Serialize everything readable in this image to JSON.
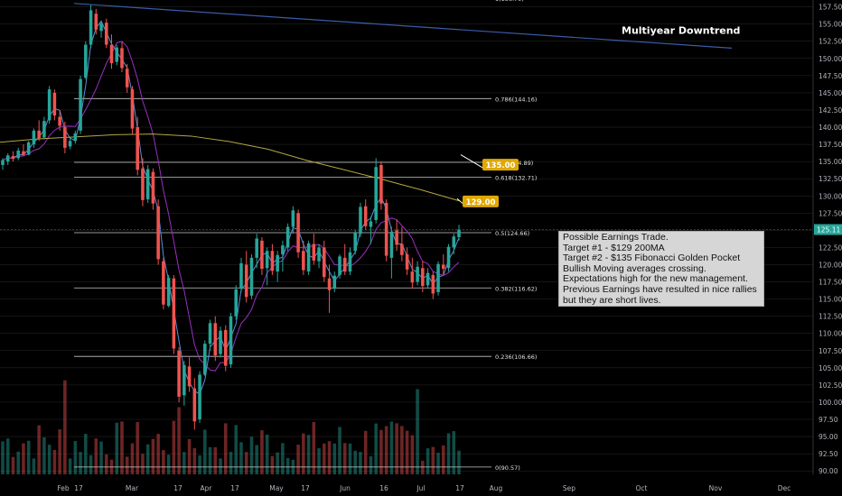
{
  "chart_data": {
    "type": "candlestick",
    "ylim": [
      89.5,
      158.5
    ],
    "y_ticks": [
      "157.50",
      "155.00",
      "152.50",
      "150.00",
      "147.50",
      "145.00",
      "142.50",
      "140.00",
      "137.50",
      "135.00",
      "132.50",
      "130.00",
      "127.50",
      "125.00",
      "122.50",
      "120.00",
      "117.50",
      "115.00",
      "112.50",
      "110.00",
      "107.50",
      "105.00",
      "102.50",
      "100.00",
      "97.50",
      "95.00",
      "92.50",
      "90.00"
    ],
    "x_ticks": [
      "Feb",
      "17",
      "Mar",
      "17",
      "Apr",
      "17",
      "May",
      "17",
      "Jun",
      "16",
      "Jul",
      "17",
      "Aug",
      "Sep",
      "Oct",
      "Nov",
      "Dec"
    ],
    "last_price": "125.11",
    "fib_levels": [
      {
        "label": "1(158.79)",
        "value": 158.79
      },
      {
        "label": "0.786(144.16)",
        "value": 144.16
      },
      {
        "label": "0.65(134.89)",
        "value": 134.89
      },
      {
        "label": "0.618(132.71)",
        "value": 132.71
      },
      {
        "label": "0.5(124.66)",
        "value": 124.66
      },
      {
        "label": "0.382(116.62)",
        "value": 116.62
      },
      {
        "label": "0.236(106.66)",
        "value": 106.66
      },
      {
        "label": "0(90.57)",
        "value": 90.57
      }
    ],
    "targets": [
      {
        "label": "135.00",
        "value": 135.0
      },
      {
        "label": "129.00",
        "value": 129.0
      }
    ],
    "trendline_label": "Multiyear Downtrend",
    "ohlc": [
      [
        134.5,
        135.5,
        133.8,
        135.2
      ],
      [
        135.0,
        136.2,
        134.5,
        135.9
      ],
      [
        135.8,
        136.5,
        135.0,
        135.4
      ],
      [
        135.5,
        137.0,
        135.2,
        136.6
      ],
      [
        136.5,
        137.5,
        135.8,
        136.0
      ],
      [
        136.0,
        138.0,
        135.9,
        137.8
      ],
      [
        137.5,
        139.8,
        137.0,
        139.5
      ],
      [
        139.5,
        141.0,
        138.0,
        138.4
      ],
      [
        138.5,
        141.5,
        138.2,
        140.9
      ],
      [
        141.0,
        146.0,
        140.5,
        145.5
      ],
      [
        145.0,
        145.5,
        141.0,
        141.7
      ],
      [
        141.5,
        142.5,
        139.5,
        140.2
      ],
      [
        140.0,
        140.8,
        136.2,
        137.0
      ],
      [
        137.2,
        138.5,
        136.8,
        138.0
      ],
      [
        138.0,
        139.5,
        137.6,
        139.1
      ],
      [
        139.5,
        147.5,
        139.0,
        147.0
      ],
      [
        147.2,
        152.5,
        147.0,
        152.0
      ],
      [
        152.0,
        157.8,
        151.5,
        157.0
      ],
      [
        156.5,
        157.2,
        153.5,
        154.2
      ],
      [
        154.0,
        155.5,
        153.0,
        155.1
      ],
      [
        155.2,
        155.8,
        151.5,
        152.0
      ],
      [
        152.0,
        153.5,
        148.5,
        149.3
      ],
      [
        149.5,
        152.0,
        149.0,
        151.6
      ],
      [
        151.5,
        152.5,
        148.0,
        148.6
      ],
      [
        148.5,
        149.2,
        145.0,
        145.8
      ],
      [
        145.5,
        146.0,
        139.0,
        139.8
      ],
      [
        140.0,
        141.5,
        133.0,
        133.8
      ],
      [
        134.0,
        135.5,
        128.5,
        129.4
      ],
      [
        129.5,
        134.5,
        129.0,
        133.9
      ],
      [
        133.5,
        134.0,
        128.0,
        128.9
      ],
      [
        128.5,
        129.5,
        120.0,
        120.8
      ],
      [
        120.5,
        121.0,
        113.5,
        114.2
      ],
      [
        114.0,
        118.5,
        113.8,
        118.1
      ],
      [
        118.0,
        118.5,
        107.0,
        107.8
      ],
      [
        107.5,
        108.0,
        100.0,
        100.8
      ],
      [
        101.0,
        106.0,
        99.5,
        105.4
      ],
      [
        105.2,
        106.5,
        101.5,
        102.3
      ],
      [
        102.0,
        103.5,
        96.0,
        97.2
      ],
      [
        97.5,
        104.5,
        97.0,
        104.0
      ],
      [
        104.0,
        109.0,
        103.8,
        108.5
      ],
      [
        108.5,
        112.0,
        107.5,
        111.5
      ],
      [
        111.5,
        112.5,
        106.0,
        106.8
      ],
      [
        107.0,
        111.0,
        106.5,
        110.4
      ],
      [
        110.5,
        111.2,
        104.5,
        105.3
      ],
      [
        105.5,
        113.0,
        105.0,
        112.5
      ],
      [
        112.5,
        117.0,
        112.0,
        116.4
      ],
      [
        116.5,
        121.0,
        116.0,
        120.2
      ],
      [
        120.0,
        122.0,
        114.5,
        115.3
      ],
      [
        115.5,
        121.5,
        115.0,
        121.0
      ],
      [
        121.0,
        124.5,
        119.5,
        123.8
      ],
      [
        123.5,
        124.0,
        118.5,
        119.4
      ],
      [
        119.5,
        122.5,
        117.0,
        122.0
      ],
      [
        122.0,
        123.0,
        118.5,
        119.1
      ],
      [
        119.0,
        122.0,
        117.5,
        121.4
      ],
      [
        121.5,
        123.5,
        119.0,
        122.8
      ],
      [
        122.5,
        126.0,
        122.0,
        125.5
      ],
      [
        125.5,
        128.5,
        124.5,
        127.9
      ],
      [
        127.5,
        128.0,
        121.0,
        121.8
      ],
      [
        122.0,
        123.5,
        118.5,
        119.2
      ],
      [
        119.0,
        123.5,
        118.5,
        123.1
      ],
      [
        123.0,
        124.5,
        120.0,
        120.6
      ],
      [
        120.5,
        123.0,
        119.5,
        122.5
      ],
      [
        122.5,
        123.5,
        117.5,
        118.2
      ],
      [
        118.0,
        120.0,
        113.0,
        116.3
      ],
      [
        116.5,
        119.0,
        116.0,
        118.4
      ],
      [
        118.5,
        121.5,
        118.0,
        121.2
      ],
      [
        121.0,
        123.0,
        118.5,
        119.0
      ],
      [
        119.0,
        122.5,
        118.5,
        121.8
      ],
      [
        122.0,
        125.0,
        121.5,
        124.7
      ],
      [
        124.5,
        129.0,
        124.0,
        128.4
      ],
      [
        128.5,
        129.5,
        125.0,
        125.6
      ],
      [
        125.5,
        127.0,
        123.0,
        126.3
      ],
      [
        126.5,
        135.5,
        126.0,
        134.2
      ],
      [
        134.5,
        135.0,
        128.0,
        128.9
      ],
      [
        129.0,
        129.5,
        120.5,
        121.3
      ],
      [
        121.0,
        125.5,
        118.0,
        124.8
      ],
      [
        125.0,
        126.5,
        122.0,
        122.9
      ],
      [
        123.0,
        125.5,
        120.5,
        121.4
      ],
      [
        121.5,
        122.5,
        118.5,
        119.3
      ],
      [
        119.0,
        121.0,
        116.5,
        117.4
      ],
      [
        117.5,
        120.5,
        117.0,
        119.7
      ],
      [
        119.5,
        120.5,
        116.0,
        116.9
      ],
      [
        117.0,
        119.5,
        116.5,
        118.8
      ],
      [
        118.5,
        119.0,
        115.0,
        115.8
      ],
      [
        116.0,
        120.5,
        115.5,
        120.1
      ],
      [
        120.0,
        121.5,
        118.5,
        119.4
      ],
      [
        119.5,
        123.0,
        119.0,
        122.6
      ],
      [
        122.5,
        124.5,
        121.5,
        124.1
      ],
      [
        124.0,
        125.8,
        123.5,
        125.1
      ]
    ]
  },
  "note": {
    "lines": [
      "Possible Earnings Trade.",
      "Target #1 - $129 200MA",
      "Target #2 - $135 Fibonacci Golden Pocket",
      "Bullish Moving averages crossing.",
      "Expectations high for the new management.",
      "Previous Earnings have resulted in nice rallies",
      "but they are short lives."
    ]
  },
  "colors": {
    "background": "#000000",
    "bull": "#26a69a",
    "bear": "#ef5350",
    "fib_line": "#c8c8c8",
    "target_box": "#e0a800",
    "ma_slow": "#b5a642",
    "ma_mid": "#9b2fbf",
    "ma_fast": "#5b8fd6",
    "trendline": "#3a5ba8",
    "grid": "#2a2a2a",
    "axis_text": "#b2b5be"
  }
}
